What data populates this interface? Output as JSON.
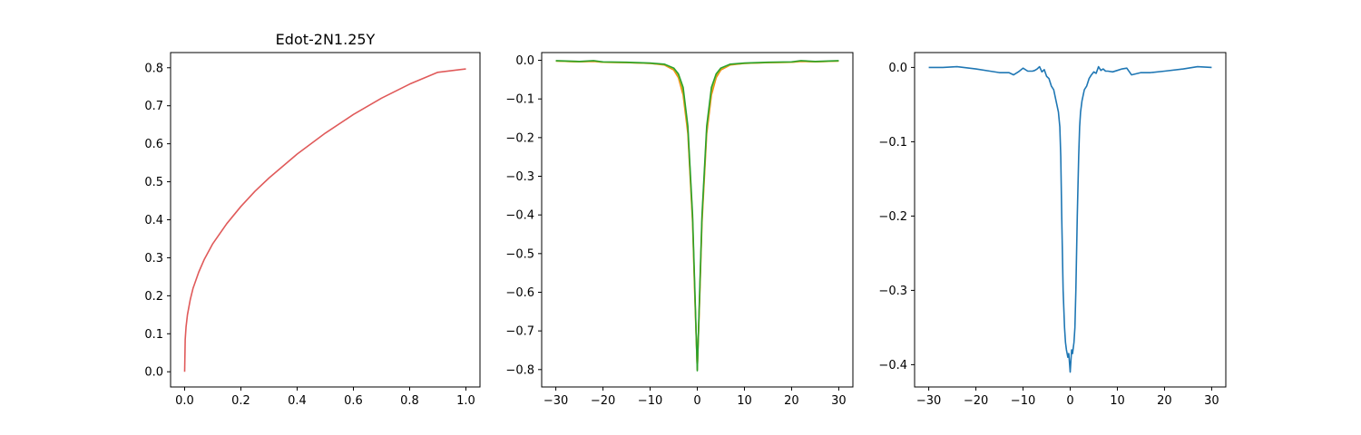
{
  "chart_data": [
    {
      "type": "line",
      "title": "Edot-2N1.25Y",
      "xlabel": "",
      "ylabel": "",
      "xlim": [
        -0.05,
        1.05
      ],
      "ylim": [
        -0.04,
        0.84
      ],
      "xticks": [
        0.0,
        0.2,
        0.4,
        0.6,
        0.8,
        1.0
      ],
      "xtick_labels": [
        "0.0",
        "0.2",
        "0.4",
        "0.6",
        "0.8",
        "1.0"
      ],
      "yticks": [
        0.0,
        0.1,
        0.2,
        0.3,
        0.4,
        0.5,
        0.6,
        0.7,
        0.8
      ],
      "ytick_labels": [
        "0.0",
        "0.1",
        "0.2",
        "0.3",
        "0.4",
        "0.5",
        "0.6",
        "0.7",
        "0.8"
      ],
      "grid": false,
      "series": [
        {
          "color": "#e05a5a",
          "x": [
            0.0,
            0.002,
            0.005,
            0.01,
            0.02,
            0.03,
            0.05,
            0.07,
            0.1,
            0.15,
            0.2,
            0.25,
            0.3,
            0.4,
            0.5,
            0.6,
            0.7,
            0.8,
            0.9,
            1.0
          ],
          "y": [
            0.0,
            0.085,
            0.118,
            0.15,
            0.19,
            0.22,
            0.262,
            0.296,
            0.337,
            0.39,
            0.435,
            0.475,
            0.51,
            0.573,
            0.628,
            0.677,
            0.72,
            0.757,
            0.788,
            0.797
          ]
        }
      ]
    },
    {
      "type": "line",
      "title": "",
      "xlabel": "",
      "ylabel": "",
      "xlim": [
        -33,
        33
      ],
      "ylim": [
        -0.845,
        0.02
      ],
      "xticks": [
        -30,
        -20,
        -10,
        0,
        10,
        20,
        30
      ],
      "xtick_labels": [
        "−30",
        "−20",
        "−10",
        "0",
        "10",
        "20",
        "30"
      ],
      "yticks": [
        0.0,
        -0.1,
        -0.2,
        -0.3,
        -0.4,
        -0.5,
        -0.6,
        -0.7,
        -0.8
      ],
      "ytick_labels": [
        "0.0",
        "−0.1",
        "−0.2",
        "−0.3",
        "−0.4",
        "−0.5",
        "−0.6",
        "−0.7",
        "−0.8"
      ],
      "grid": false,
      "series": [
        {
          "color": "#ff7f0e",
          "x": [
            -30,
            -25,
            -22,
            -20,
            -15,
            -10,
            -7,
            -5,
            -4,
            -3,
            -2,
            -1,
            -0.5,
            0,
            0.5,
            1,
            2,
            3,
            4,
            5,
            7,
            10,
            15,
            20,
            22,
            25,
            30
          ],
          "y": [
            -0.002,
            -0.004,
            -0.003,
            -0.005,
            -0.006,
            -0.008,
            -0.012,
            -0.025,
            -0.045,
            -0.09,
            -0.19,
            -0.42,
            -0.62,
            -0.8,
            -0.62,
            -0.42,
            -0.19,
            -0.09,
            -0.045,
            -0.025,
            -0.012,
            -0.008,
            -0.006,
            -0.005,
            -0.003,
            -0.004,
            -0.002
          ]
        },
        {
          "color": "#bcbd22",
          "x": [
            -30,
            -25,
            -22,
            -20,
            -15,
            -10,
            -7,
            -5,
            -4,
            -3,
            -2,
            -1,
            -0.5,
            0,
            0.5,
            1,
            2,
            3,
            4,
            5,
            7,
            10,
            15,
            20,
            22,
            25,
            30
          ],
          "y": [
            -0.002,
            -0.004,
            -0.002,
            -0.005,
            -0.006,
            -0.008,
            -0.011,
            -0.022,
            -0.04,
            -0.08,
            -0.18,
            -0.41,
            -0.61,
            -0.8,
            -0.61,
            -0.41,
            -0.18,
            -0.08,
            -0.04,
            -0.022,
            -0.011,
            -0.008,
            -0.006,
            -0.005,
            -0.002,
            -0.004,
            -0.002
          ]
        },
        {
          "color": "#2ca02c",
          "x": [
            -30,
            -25,
            -22,
            -20,
            -15,
            -10,
            -7,
            -5,
            -4,
            -3,
            -2,
            -1,
            -0.5,
            0,
            0.5,
            1,
            2,
            3,
            4,
            5,
            7,
            10,
            15,
            20,
            22,
            25,
            30
          ],
          "y": [
            -0.001,
            -0.003,
            -0.001,
            -0.004,
            -0.005,
            -0.007,
            -0.01,
            -0.02,
            -0.035,
            -0.07,
            -0.17,
            -0.4,
            -0.6,
            -0.803,
            -0.6,
            -0.4,
            -0.17,
            -0.07,
            -0.035,
            -0.02,
            -0.01,
            -0.007,
            -0.005,
            -0.004,
            -0.001,
            -0.003,
            -0.001
          ]
        }
      ]
    },
    {
      "type": "line",
      "title": "",
      "xlabel": "",
      "ylabel": "",
      "xlim": [
        -33,
        33
      ],
      "ylim": [
        -0.43,
        0.02
      ],
      "xticks": [
        -30,
        -20,
        -10,
        0,
        10,
        20,
        30
      ],
      "xtick_labels": [
        "−30",
        "−20",
        "−10",
        "0",
        "10",
        "20",
        "30"
      ],
      "yticks": [
        0.0,
        -0.1,
        -0.2,
        -0.3,
        -0.4
      ],
      "ytick_labels": [
        "0.0",
        "−0.1",
        "−0.2",
        "−0.3",
        "−0.4"
      ],
      "grid": false,
      "series": [
        {
          "color": "#1f77b4",
          "x": [
            -30,
            -27,
            -24,
            -20,
            -17,
            -15,
            -13,
            -12,
            -11,
            -10,
            -9,
            -8,
            -7.5,
            -7,
            -6.5,
            -6,
            -5.5,
            -5,
            -4.5,
            -4,
            -3.5,
            -3,
            -2.5,
            -2.2,
            -2,
            -1.8,
            -1.5,
            -1.2,
            -1,
            -0.8,
            -0.5,
            -0.3,
            0,
            0.3,
            0.5,
            0.8,
            1,
            1.2,
            1.5,
            1.8,
            2,
            2.2,
            2.5,
            3,
            3.5,
            4,
            4.5,
            5,
            5.5,
            6,
            6.5,
            7,
            7.5,
            8,
            9,
            10,
            11,
            12,
            13,
            15,
            17,
            20,
            24,
            27,
            30
          ],
          "y": [
            0.0,
            0.0,
            0.001,
            -0.002,
            -0.005,
            -0.007,
            -0.007,
            -0.01,
            -0.006,
            -0.001,
            -0.005,
            -0.005,
            -0.004,
            -0.002,
            0.001,
            -0.006,
            -0.003,
            -0.012,
            -0.015,
            -0.025,
            -0.03,
            -0.045,
            -0.06,
            -0.08,
            -0.12,
            -0.2,
            -0.3,
            -0.35,
            -0.37,
            -0.38,
            -0.39,
            -0.385,
            -0.41,
            -0.38,
            -0.385,
            -0.37,
            -0.35,
            -0.3,
            -0.2,
            -0.12,
            -0.08,
            -0.06,
            -0.045,
            -0.03,
            -0.025,
            -0.015,
            -0.01,
            -0.006,
            -0.008,
            0.001,
            -0.004,
            -0.002,
            -0.005,
            -0.005,
            -0.006,
            -0.004,
            -0.002,
            -0.001,
            -0.01,
            -0.007,
            -0.007,
            -0.005,
            -0.002,
            0.001,
            0.0
          ]
        }
      ]
    }
  ]
}
